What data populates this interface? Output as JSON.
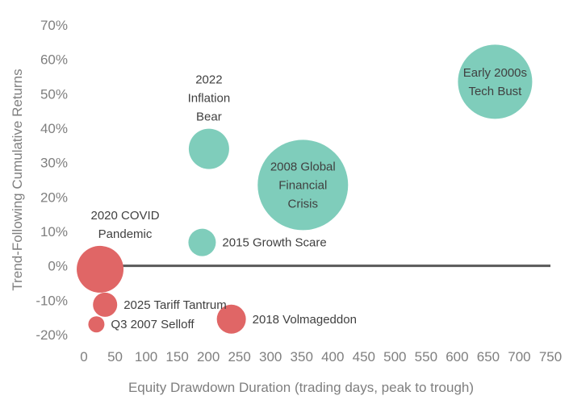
{
  "chart_data": {
    "type": "scatter",
    "title": "",
    "xlabel": "Equity Drawdown Duration (trading days, peak to trough)",
    "ylabel": "Trend-Following Cumulative Returns",
    "xlim": [
      0,
      750
    ],
    "ylim": [
      -20,
      70
    ],
    "x_ticks": [
      0,
      50,
      100,
      150,
      200,
      250,
      300,
      350,
      400,
      450,
      500,
      550,
      600,
      650,
      700,
      750
    ],
    "x_tick_labels": [
      "0",
      "50",
      "100",
      "150",
      "200",
      "250",
      "300",
      "350",
      "400",
      "450",
      "500",
      "550",
      "600",
      "650",
      "700",
      "750"
    ],
    "y_ticks": [
      -20,
      -10,
      0,
      10,
      20,
      30,
      40,
      50,
      60,
      70
    ],
    "y_tick_labels": [
      "-20%",
      "-10%",
      "0%",
      "10%",
      "20%",
      "30%",
      "40%",
      "50%",
      "60%",
      "70%"
    ],
    "grid": false,
    "zero_line": true,
    "colors": {
      "positive": "#7fcdbb",
      "negative": "#e06666",
      "zero_line": "#595959"
    },
    "points": [
      {
        "label": "Early 2000s Tech Bust",
        "label_lines": [
          "Early 2000s",
          "Tech Bust"
        ],
        "x": 661,
        "y": 53.5,
        "size": 46,
        "label_pos": "center"
      },
      {
        "label": "2008 Global Financial Crisis",
        "label_lines": [
          "2008 Global",
          "Financial",
          "Crisis"
        ],
        "x": 352,
        "y": 23.5,
        "size": 56,
        "label_pos": "center"
      },
      {
        "label": "2022 Inflation Bear",
        "label_lines": [
          "2022",
          "Inflation",
          "Bear"
        ],
        "x": 201,
        "y": 34,
        "size": 25,
        "label_pos": "above"
      },
      {
        "label": "2015 Growth Scare",
        "label_lines": [
          "2015 Growth Scare"
        ],
        "x": 190,
        "y": 6.8,
        "size": 17,
        "label_pos": "right"
      },
      {
        "label": "2020 COVID Pandemic",
        "label_lines": [
          "2020 COVID",
          "Pandemic"
        ],
        "x": 26,
        "y": -1,
        "size": 29,
        "label_pos": "above"
      },
      {
        "label": "2025 Tariff Tantrum",
        "label_lines": [
          "2025 Tariff Tantrum"
        ],
        "x": 34,
        "y": -11.3,
        "size": 15,
        "label_pos": "right"
      },
      {
        "label": "Q3 2007 Selloff",
        "label_lines": [
          "Q3 2007 Selloff"
        ],
        "x": 20,
        "y": -17,
        "size": 10,
        "label_pos": "right"
      },
      {
        "label": "2018 Volmageddon",
        "label_lines": [
          "2018 Volmageddon"
        ],
        "x": 237,
        "y": -15.5,
        "size": 18,
        "label_pos": "right"
      }
    ]
  }
}
